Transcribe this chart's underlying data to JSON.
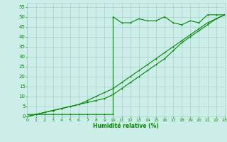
{
  "xlabel": "Humidité relative (%)",
  "bg_color": "#cceee8",
  "grid_color": "#aacccc",
  "line_color": "#008800",
  "xmin": 0,
  "xmax": 23,
  "ymin": 0,
  "ymax": 57,
  "yticks": [
    0,
    5,
    10,
    15,
    20,
    25,
    30,
    35,
    40,
    45,
    50,
    55
  ],
  "xticks": [
    0,
    1,
    2,
    3,
    4,
    5,
    6,
    7,
    8,
    9,
    10,
    11,
    12,
    13,
    14,
    15,
    16,
    17,
    18,
    19,
    20,
    21,
    22,
    23
  ],
  "line1_x": [
    0,
    1,
    2,
    3,
    4,
    5,
    6,
    7,
    8,
    9,
    10,
    10,
    11,
    12,
    13,
    14,
    15,
    16,
    17,
    18,
    19,
    20,
    21,
    22,
    23
  ],
  "line1_y": [
    1,
    1,
    1,
    1,
    1,
    1,
    1,
    1,
    1,
    1,
    1,
    50,
    47,
    47,
    49,
    48,
    48,
    50,
    47,
    46,
    48,
    47,
    51,
    51,
    51
  ],
  "line2_x": [
    0,
    1,
    2,
    3,
    4,
    5,
    6,
    7,
    8,
    9,
    10,
    11,
    12,
    13,
    14,
    15,
    16,
    17,
    18,
    19,
    20,
    21,
    22,
    23
  ],
  "line2_y": [
    0,
    1,
    2,
    3,
    4,
    5,
    6,
    8,
    10,
    12,
    14,
    17,
    20,
    23,
    26,
    29,
    32,
    35,
    38,
    41,
    44,
    47,
    49,
    51
  ],
  "line3_x": [
    0,
    1,
    2,
    3,
    4,
    5,
    6,
    7,
    8,
    9,
    10,
    11,
    12,
    13,
    14,
    15,
    16,
    17,
    18,
    19,
    20,
    21,
    22,
    23
  ],
  "line3_y": [
    0,
    1,
    2,
    3,
    4,
    5,
    6,
    7,
    8,
    9,
    11,
    14,
    17,
    20,
    23,
    26,
    29,
    33,
    37,
    40,
    43,
    46,
    49,
    51
  ]
}
